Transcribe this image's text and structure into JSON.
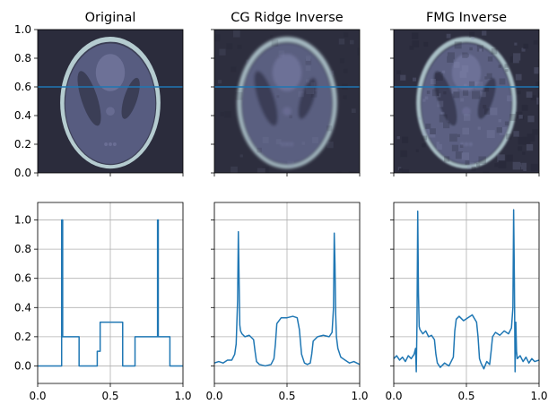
{
  "chart_data": [
    {
      "type": "heatmap",
      "title": "Original",
      "xlim": [
        0,
        1
      ],
      "ylim": [
        0,
        1
      ],
      "yticks": [
        "0.0",
        "0.2",
        "0.4",
        "0.6",
        "0.8",
        "1.0"
      ],
      "yticklabels_visible": true,
      "profile_line_y": 0.6,
      "artifacts": "none",
      "colors": {
        "background": "#2b2c3c",
        "skull": "#b5ccd0",
        "body": "#575c80",
        "line": "#1f77b4"
      }
    },
    {
      "type": "heatmap",
      "title": "CG Ridge Inverse",
      "xlim": [
        0,
        1
      ],
      "ylim": [
        0,
        1
      ],
      "yticks": [
        "0.0",
        "0.2",
        "0.4",
        "0.6",
        "0.8",
        "1.0"
      ],
      "yticklabels_visible": false,
      "profile_line_y": 0.6,
      "artifacts": "smooth-blur",
      "colors": {
        "background": "#2d2e3e",
        "skull": "#a7bcc4",
        "body": "#5a5e80",
        "line": "#1f77b4"
      }
    },
    {
      "type": "heatmap",
      "title": "FMG Inverse",
      "xlim": [
        0,
        1
      ],
      "ylim": [
        0,
        1
      ],
      "yticks": [
        "0.0",
        "0.2",
        "0.4",
        "0.6",
        "0.8",
        "1.0"
      ],
      "yticklabels_visible": false,
      "profile_line_y": 0.6,
      "artifacts": "noisy-blocky",
      "colors": {
        "background": "#2e2f40",
        "skull": "#a9bfc6",
        "body": "#5c6082",
        "line": "#1f77b4"
      }
    },
    {
      "type": "line",
      "title": "",
      "xlim": [
        0,
        1
      ],
      "ylim": [
        -0.12,
        1.12
      ],
      "xticks": [
        "0.0",
        "0.5",
        "1.0"
      ],
      "yticks": [
        "0.0",
        "0.2",
        "0.4",
        "0.6",
        "0.8",
        "1.0"
      ],
      "yticklabels_visible": true,
      "grid": true,
      "series": [
        {
          "color": "#1f77b4",
          "x": [
            0.0,
            0.165,
            0.165,
            0.172,
            0.172,
            0.177,
            0.177,
            0.285,
            0.285,
            0.41,
            0.41,
            0.43,
            0.43,
            0.585,
            0.585,
            0.67,
            0.67,
            0.81,
            0.81,
            0.825,
            0.825,
            0.83,
            0.83,
            0.91,
            0.91,
            1.0
          ],
          "y": [
            0.0,
            0.0,
            1.0,
            1.0,
            0.2,
            0.2,
            0.2,
            0.2,
            0.0,
            0.0,
            0.1,
            0.1,
            0.3,
            0.3,
            0.0,
            0.0,
            0.2,
            0.2,
            0.2,
            0.2,
            1.0,
            1.0,
            0.2,
            0.2,
            0.0,
            0.0
          ]
        }
      ]
    },
    {
      "type": "line",
      "title": "",
      "xlim": [
        0,
        1
      ],
      "ylim": [
        -0.12,
        1.12
      ],
      "xticks": [
        "0.0",
        "0.5",
        "1.0"
      ],
      "yticks": [
        "0.0",
        "0.2",
        "0.4",
        "0.6",
        "0.8",
        "1.0"
      ],
      "yticklabels_visible": false,
      "grid": true,
      "series": [
        {
          "color": "#1f77b4",
          "x": [
            0.0,
            0.03,
            0.06,
            0.09,
            0.12,
            0.14,
            0.15,
            0.16,
            0.165,
            0.17,
            0.175,
            0.18,
            0.19,
            0.21,
            0.24,
            0.27,
            0.28,
            0.29,
            0.31,
            0.35,
            0.39,
            0.41,
            0.42,
            0.43,
            0.46,
            0.5,
            0.54,
            0.57,
            0.585,
            0.6,
            0.62,
            0.64,
            0.66,
            0.67,
            0.68,
            0.71,
            0.75,
            0.79,
            0.81,
            0.82,
            0.825,
            0.83,
            0.835,
            0.84,
            0.85,
            0.87,
            0.9,
            0.93,
            0.96,
            1.0
          ],
          "y": [
            0.02,
            0.03,
            0.02,
            0.04,
            0.04,
            0.08,
            0.15,
            0.45,
            0.92,
            0.6,
            0.28,
            0.24,
            0.22,
            0.2,
            0.21,
            0.18,
            0.1,
            0.03,
            0.01,
            0.0,
            0.01,
            0.05,
            0.15,
            0.29,
            0.33,
            0.33,
            0.34,
            0.33,
            0.25,
            0.08,
            0.02,
            0.01,
            0.02,
            0.08,
            0.17,
            0.2,
            0.21,
            0.2,
            0.23,
            0.4,
            0.91,
            0.7,
            0.35,
            0.2,
            0.12,
            0.06,
            0.04,
            0.02,
            0.03,
            0.01
          ]
        }
      ]
    },
    {
      "type": "line",
      "title": "",
      "xlim": [
        0,
        1
      ],
      "ylim": [
        -0.12,
        1.12
      ],
      "xticks": [
        "0.0",
        "0.5",
        "1.0"
      ],
      "yticks": [
        "0.0",
        "0.2",
        "0.4",
        "0.6",
        "0.8",
        "1.0"
      ],
      "yticklabels_visible": false,
      "grid": true,
      "series": [
        {
          "color": "#1f77b4",
          "x": [
            0.0,
            0.02,
            0.04,
            0.06,
            0.08,
            0.1,
            0.12,
            0.14,
            0.15,
            0.155,
            0.16,
            0.165,
            0.17,
            0.175,
            0.18,
            0.2,
            0.22,
            0.24,
            0.26,
            0.28,
            0.29,
            0.3,
            0.32,
            0.35,
            0.38,
            0.41,
            0.42,
            0.43,
            0.45,
            0.48,
            0.51,
            0.54,
            0.57,
            0.58,
            0.59,
            0.6,
            0.62,
            0.64,
            0.66,
            0.67,
            0.68,
            0.7,
            0.73,
            0.76,
            0.79,
            0.81,
            0.82,
            0.825,
            0.83,
            0.835,
            0.84,
            0.845,
            0.85,
            0.87,
            0.89,
            0.91,
            0.93,
            0.95,
            0.97,
            1.0
          ],
          "y": [
            0.05,
            0.07,
            0.04,
            0.06,
            0.03,
            0.07,
            0.05,
            0.08,
            0.12,
            -0.04,
            0.3,
            1.06,
            0.5,
            0.27,
            0.25,
            0.22,
            0.24,
            0.2,
            0.21,
            0.18,
            0.08,
            0.02,
            -0.01,
            0.02,
            0.0,
            0.06,
            0.24,
            0.32,
            0.34,
            0.31,
            0.33,
            0.35,
            0.3,
            0.2,
            0.05,
            0.02,
            -0.02,
            0.03,
            0.01,
            0.1,
            0.2,
            0.23,
            0.21,
            0.24,
            0.22,
            0.26,
            0.4,
            1.07,
            0.6,
            -0.04,
            0.3,
            0.1,
            0.05,
            0.07,
            0.03,
            0.06,
            0.02,
            0.05,
            0.03,
            0.04
          ]
        }
      ]
    }
  ]
}
